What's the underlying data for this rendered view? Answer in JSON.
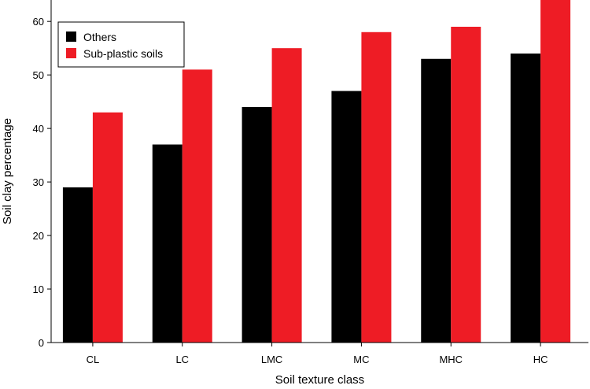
{
  "chart_data": {
    "type": "bar",
    "xlabel": "Soil texture class",
    "ylabel": "Soil clay percentage",
    "ylim": [
      0,
      64
    ],
    "yticks": [
      0,
      10,
      20,
      30,
      40,
      50,
      60
    ],
    "categories": [
      "CL",
      "LC",
      "LMC",
      "MC",
      "MHC",
      "HC"
    ],
    "series": [
      {
        "name": "Others",
        "color": "#000000",
        "values": [
          29,
          37,
          44,
          47,
          53,
          54
        ]
      },
      {
        "name": "Sub-plastic soils",
        "color": "#ee1c25",
        "values": [
          43,
          51,
          55,
          58,
          59,
          64
        ]
      }
    ],
    "legend_position": "top-left",
    "grid": false
  }
}
